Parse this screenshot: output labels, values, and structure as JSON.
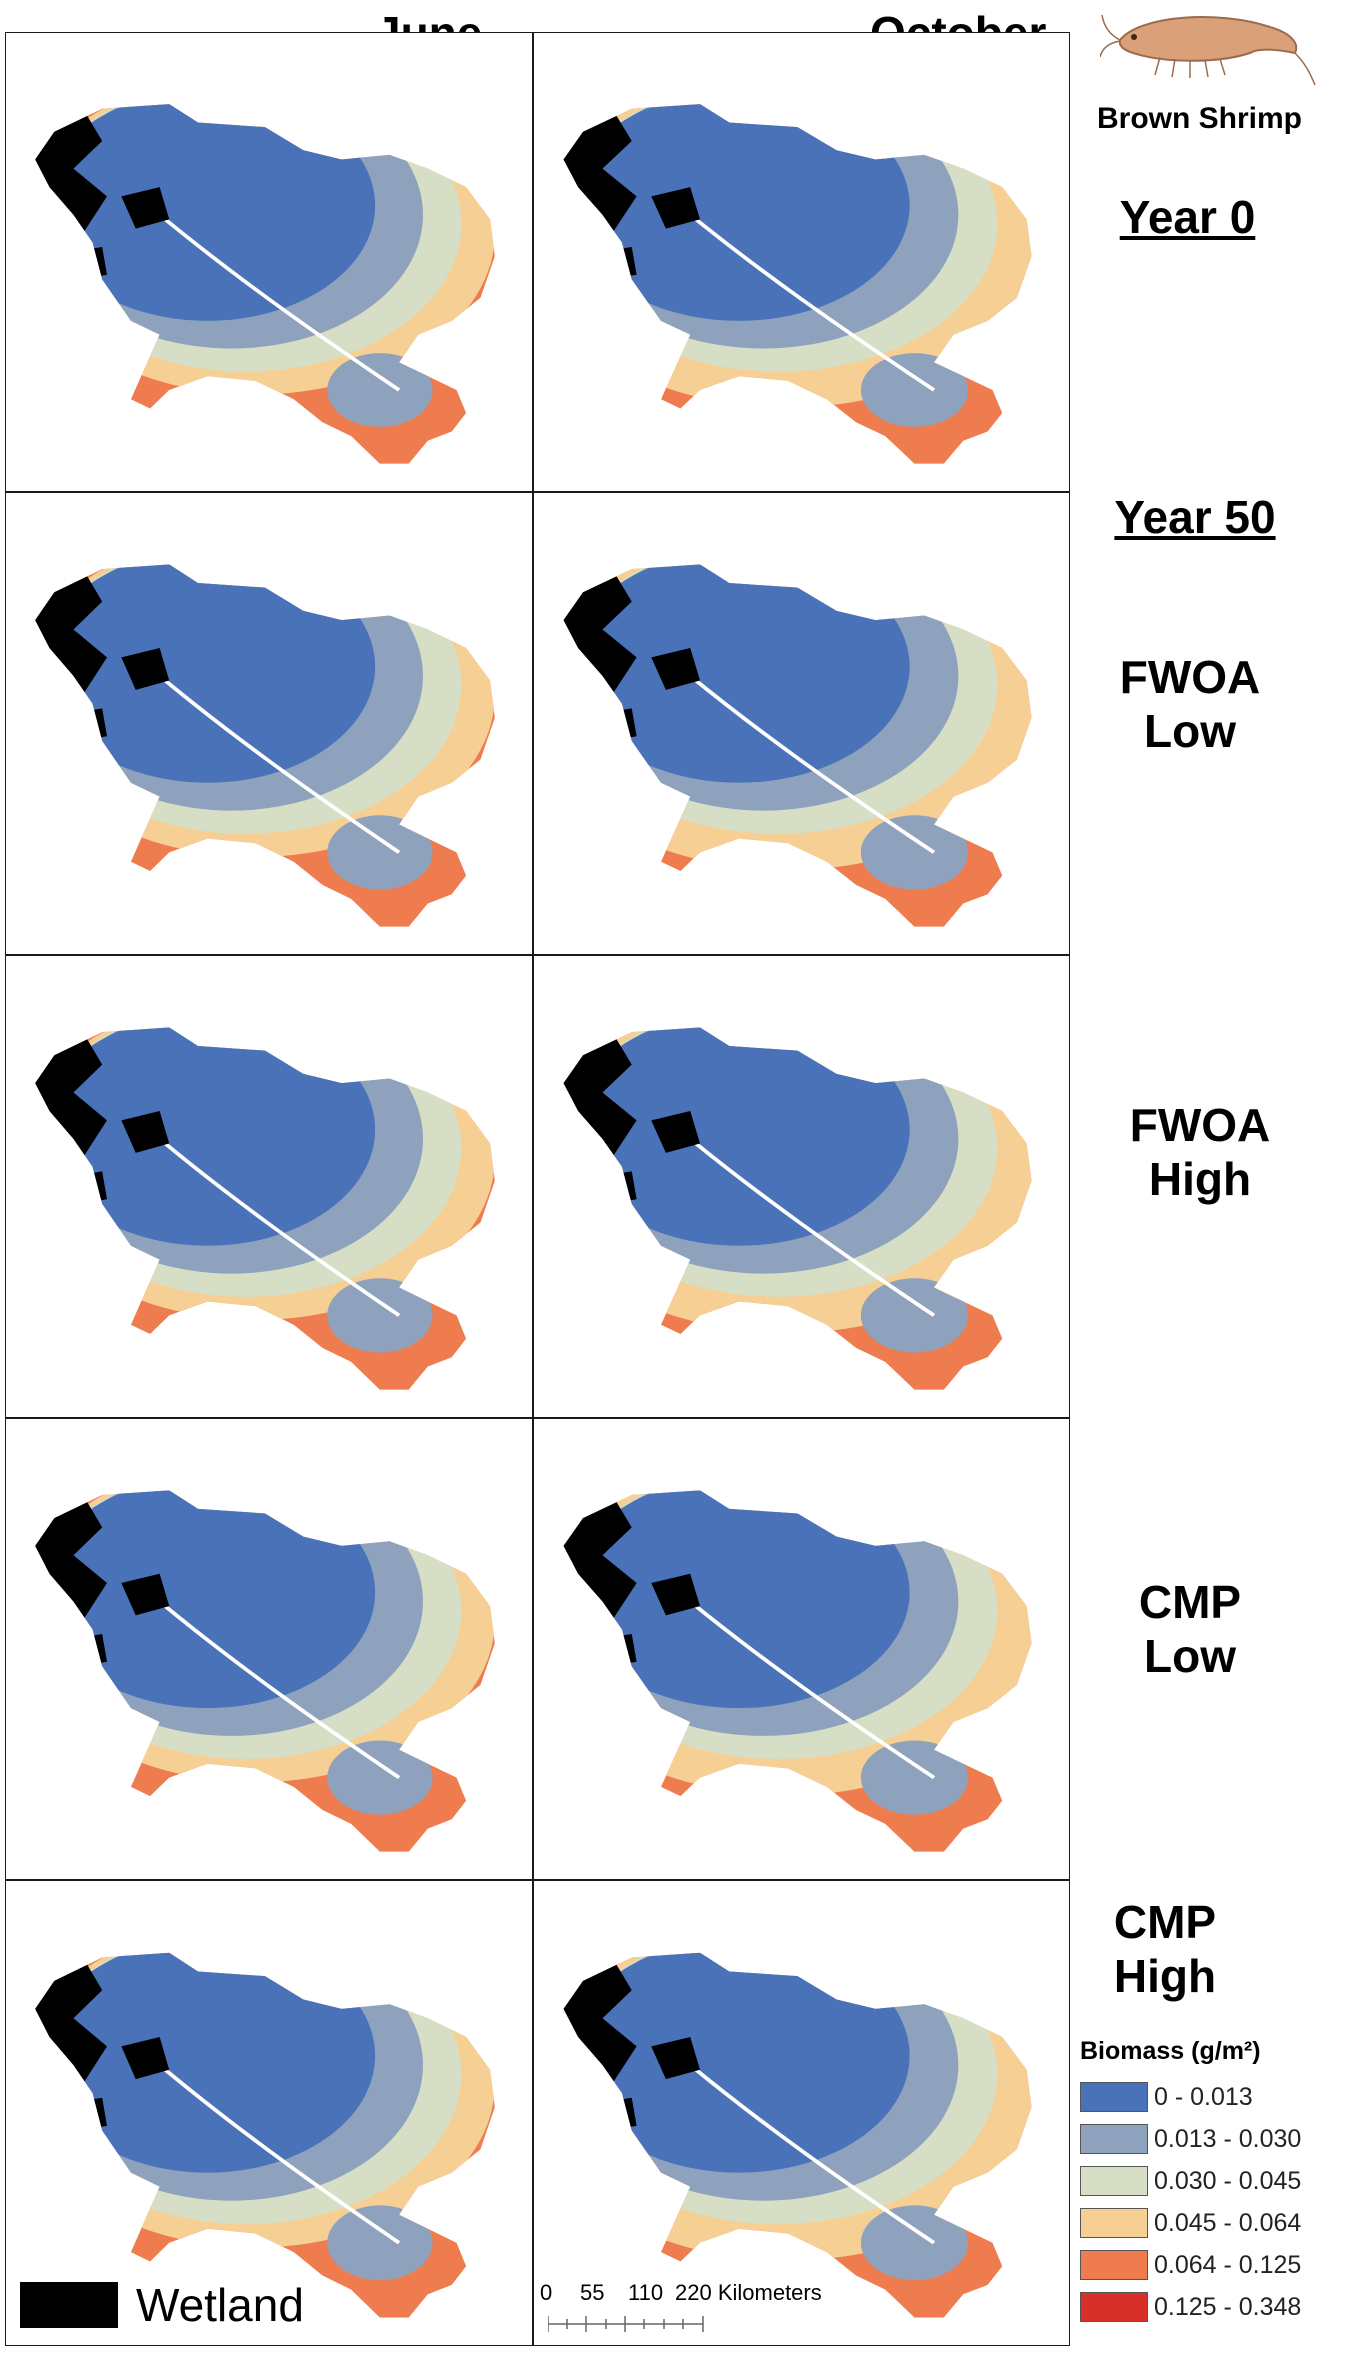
{
  "columns": [
    "June",
    "October"
  ],
  "species": {
    "name": "Brown Shrimp",
    "icon": "shrimp-icon"
  },
  "rows": [
    {
      "label_lines": [
        "Year 0"
      ],
      "underline": true
    },
    {
      "label_lines": [
        "Year 50"
      ],
      "underline": true,
      "sublabel_lines": [
        "FWOA",
        "Low"
      ]
    },
    {
      "label_lines": [
        "FWOA",
        "High"
      ],
      "underline": false
    },
    {
      "label_lines": [
        "CMP",
        "Low"
      ],
      "underline": false
    },
    {
      "label_lines": [
        "CMP",
        "High"
      ],
      "underline": false
    }
  ],
  "legend": {
    "title": "Biomass (g/m²)",
    "classes": [
      {
        "label": "0 - 0.013",
        "color": "#4a72b8"
      },
      {
        "label": "0.013 - 0.030",
        "color": "#8ea2bd"
      },
      {
        "label": "0.030 - 0.045",
        "color": "#d6dfc5"
      },
      {
        "label": "0.045 - 0.064",
        "color": "#f6cf95"
      },
      {
        "label": "0.064 - 0.125",
        "color": "#ee7c4e"
      },
      {
        "label": "0.125 - 0.348",
        "color": "#d7302a"
      }
    ]
  },
  "wetland": {
    "label": "Wetland",
    "color": "#000000"
  },
  "scale": {
    "ticks": [
      "0",
      "55",
      "110"
    ],
    "end_label": "220 Kilometers"
  }
}
